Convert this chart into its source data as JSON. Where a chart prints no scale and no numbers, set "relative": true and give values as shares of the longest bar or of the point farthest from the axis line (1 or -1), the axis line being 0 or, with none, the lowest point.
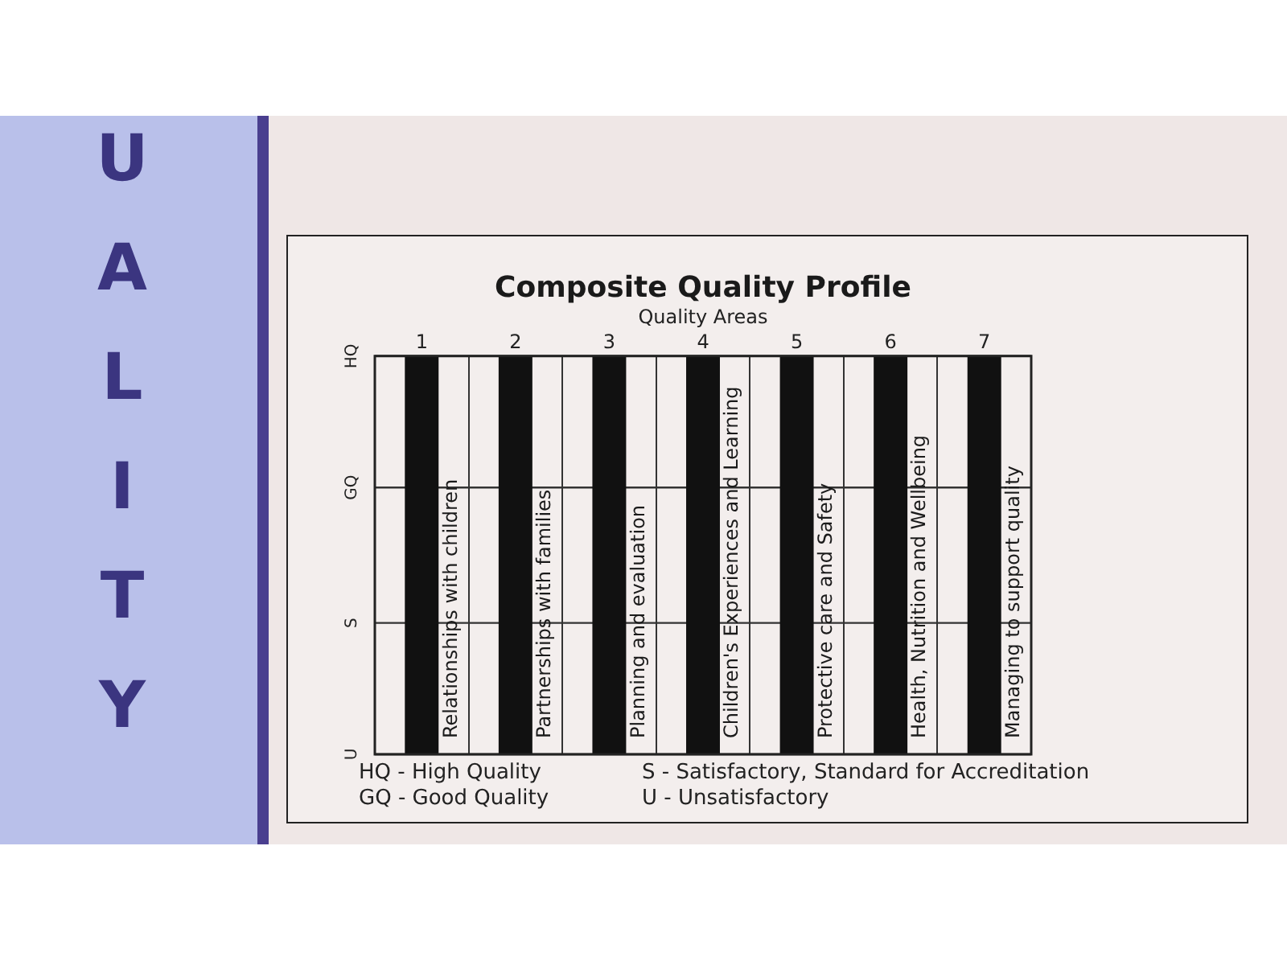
{
  "chart_data": {
    "type": "bar",
    "title": "Composite Quality Profile",
    "xlabel": "Quality Areas",
    "categories": [
      "1",
      "2",
      "3",
      "4",
      "5",
      "6",
      "7"
    ],
    "values": [
      1,
      1,
      1,
      1,
      1,
      1,
      1
    ],
    "color": "#111111",
    "relative": true,
    "grid": "x",
    "ref_lines": [
      {
        "axis": "y",
        "value": 0,
        "label": "U",
        "color": "#333333"
      },
      {
        "axis": "y",
        "value": 0.33,
        "label": "S",
        "color": "#333333"
      },
      {
        "axis": "y",
        "value": 0.67,
        "label": "GQ",
        "color": "#333333"
      },
      {
        "axis": "y",
        "value": 1,
        "label": "HQ",
        "color": "#333333"
      }
    ],
    "annotations": [
      "UALITY",
      "HQ - High Quality",
      "GQ - Good Quality",
      "S - Satisfactory, Standard for Accreditation",
      "U - Unsatisfactory",
      "Relationships with children",
      "Partnerships with families",
      "Planning and evaluation",
      "Children's Experiences and Learning",
      "Protective care and Safety",
      "Health, Nutrition and Wellbeing",
      "Managing to support quality"
    ]
  }
}
